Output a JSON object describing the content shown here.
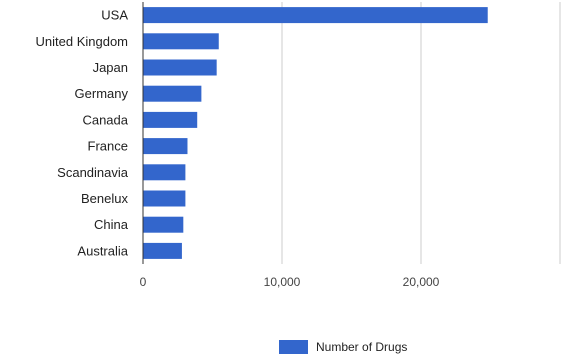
{
  "chart_data": {
    "type": "bar",
    "orientation": "horizontal",
    "categories": [
      "USA",
      "United Kingdom",
      "Japan",
      "Germany",
      "Canada",
      "France",
      "Scandinavia",
      "Benelux",
      "China",
      "Australia"
    ],
    "series": [
      {
        "name": "Number of Drugs",
        "values": [
          24800,
          5450,
          5300,
          4200,
          3900,
          3200,
          3050,
          3050,
          2900,
          2800
        ],
        "color": "#3366cc"
      }
    ],
    "xlim": [
      0,
      30000
    ],
    "x_ticks": [
      0,
      10000,
      20000
    ],
    "x_tick_labels": [
      "0",
      "10,000",
      "20,000"
    ],
    "grid": true,
    "legend_position": "bottom"
  },
  "legend": {
    "label": "Number of Drugs"
  }
}
